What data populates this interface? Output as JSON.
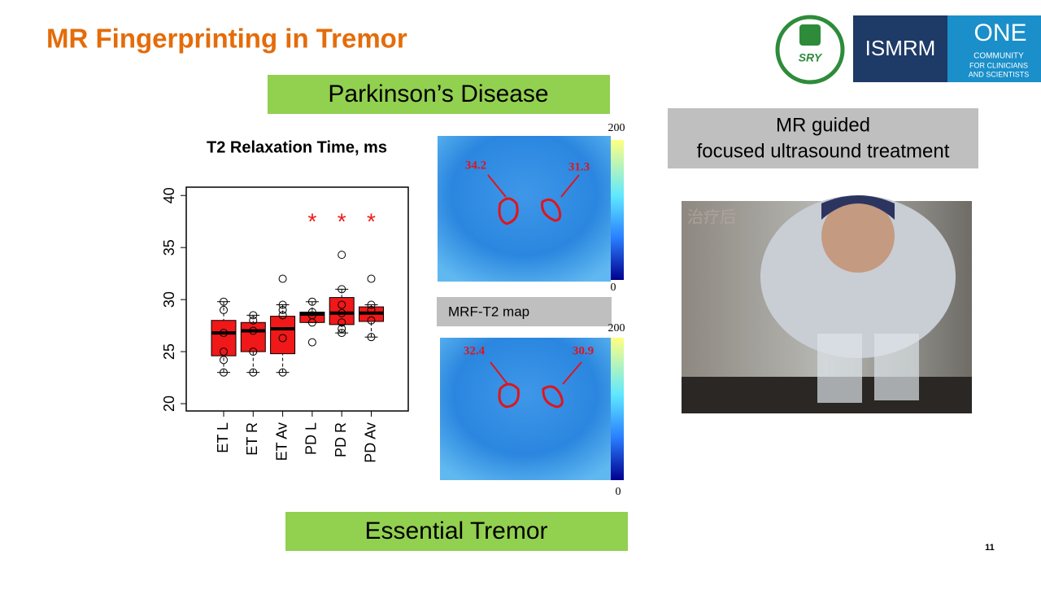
{
  "header": {
    "title": "MR Fingerprinting in Tremor"
  },
  "logos": {
    "hospital": "SRY",
    "society": "ISMRM",
    "one": "ONE",
    "tagline": [
      "COMMUNITY",
      "FOR CLINICIANS",
      "AND SCIENTISTS"
    ]
  },
  "labels": {
    "top": "Parkinson’s Disease",
    "bottom": "Essential Tremor",
    "map": "MRF-T2 map",
    "treatment": [
      "MR guided",
      "focused ultrasound treatment"
    ],
    "video_overlay": "治疗后"
  },
  "maps": [
    {
      "left_value": "34.2",
      "right_value": "31.3",
      "scale_max": "200",
      "scale_min": "0"
    },
    {
      "left_value": "32.4",
      "right_value": "30.9",
      "scale_max": "200",
      "scale_min": "0"
    }
  ],
  "page_number": "11",
  "chart_data": {
    "type": "box",
    "title": "T2 Relaxation Time, ms",
    "categories": [
      "ET L",
      "ET R",
      "ET Av",
      "PD L",
      "PD R",
      "PD Av"
    ],
    "color": "#f01818",
    "boxes": [
      {
        "min": 23.0,
        "q1": 24.6,
        "median": 26.8,
        "q3": 28.0,
        "max": 29.8,
        "points": [
          29.8,
          29.0,
          26.8,
          25.0,
          24.2,
          23.0
        ]
      },
      {
        "min": 23.0,
        "q1": 25.0,
        "median": 27.0,
        "q3": 27.8,
        "max": 28.5,
        "points": [
          28.5,
          28.0,
          27.0,
          25.0,
          23.0
        ]
      },
      {
        "min": 23.0,
        "q1": 24.8,
        "median": 27.2,
        "q3": 28.4,
        "max": 29.5,
        "points": [
          32.0,
          29.5,
          29.0,
          28.5,
          26.3,
          23.0
        ]
      },
      {
        "min": 27.8,
        "q1": 27.8,
        "median": 28.6,
        "q3": 28.8,
        "max": 29.8,
        "points": [
          29.8,
          28.8,
          28.5,
          27.8,
          25.9
        ]
      },
      {
        "min": 26.8,
        "q1": 27.6,
        "median": 28.7,
        "q3": 30.2,
        "max": 31.0,
        "points": [
          34.3,
          31.0,
          29.5,
          28.7,
          27.8,
          27.2,
          26.8
        ]
      },
      {
        "min": 26.4,
        "q1": 27.9,
        "median": 28.7,
        "q3": 29.3,
        "max": 29.5,
        "points": [
          32.0,
          29.5,
          29.0,
          28.0,
          26.4
        ]
      }
    ],
    "annotations": [
      {
        "text": "*",
        "category": 3,
        "value": 37.9
      },
      {
        "text": "*",
        "category": 4,
        "value": 37.9
      },
      {
        "text": "*",
        "category": 5,
        "value": 37.9
      }
    ],
    "ylim": [
      19.3,
      40.8
    ],
    "yticks": [
      20,
      25,
      30,
      35,
      40
    ]
  }
}
